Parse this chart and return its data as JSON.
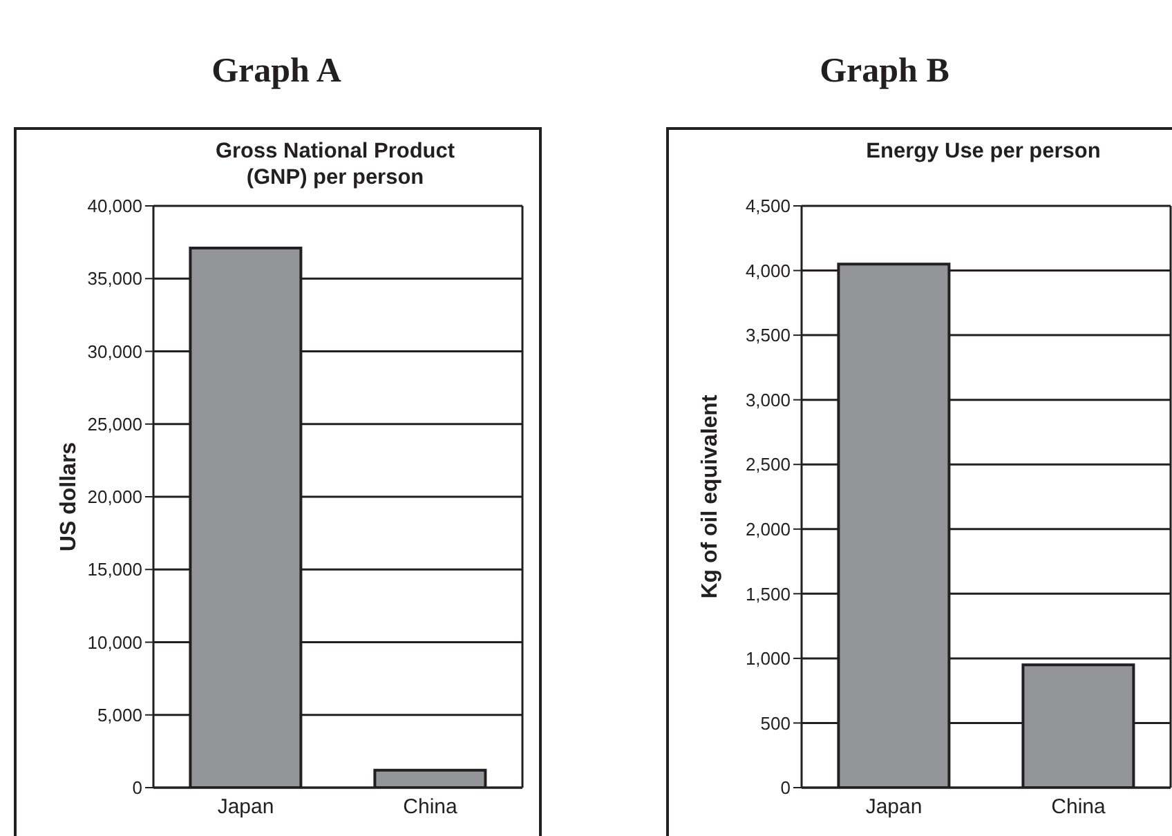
{
  "chart_data": [
    {
      "type": "bar",
      "title": "Graph A",
      "subtitle": "Gross National Product (GNP) per person",
      "ylabel": "US dollars",
      "categories": [
        "Japan",
        "China"
      ],
      "values": [
        37100,
        1200
      ],
      "color": "#939598",
      "ylim": [
        0,
        40000
      ],
      "yticks": [
        {
          "value": 0,
          "label": "0"
        },
        {
          "value": 5000,
          "label": "5,000"
        },
        {
          "value": 10000,
          "label": "10,000"
        },
        {
          "value": 15000,
          "label": "15,000"
        },
        {
          "value": 20000,
          "label": "20,000"
        },
        {
          "value": 25000,
          "label": "25,000"
        },
        {
          "value": 30000,
          "label": "30,000"
        },
        {
          "value": 35000,
          "label": "35,000"
        },
        {
          "value": 40000,
          "label": "40,000"
        }
      ],
      "grid": "y"
    },
    {
      "type": "bar",
      "title": "Graph B",
      "subtitle": "Energy Use per person",
      "ylabel": "Kg of oil equivalent",
      "categories": [
        "Japan",
        "China"
      ],
      "values": [
        4050,
        950
      ],
      "color": "#939598",
      "ylim": [
        0,
        4500
      ],
      "yticks": [
        {
          "value": 0,
          "label": "0"
        },
        {
          "value": 500,
          "label": "500"
        },
        {
          "value": 1000,
          "label": "1,000"
        },
        {
          "value": 1500,
          "label": "1,500"
        },
        {
          "value": 2000,
          "label": "2,000"
        },
        {
          "value": 2500,
          "label": "2,500"
        },
        {
          "value": 3000,
          "label": "3,000"
        },
        {
          "value": 3500,
          "label": "3,500"
        },
        {
          "value": 4000,
          "label": "4,000"
        },
        {
          "value": 4500,
          "label": "4,500"
        }
      ],
      "grid": "y"
    }
  ]
}
